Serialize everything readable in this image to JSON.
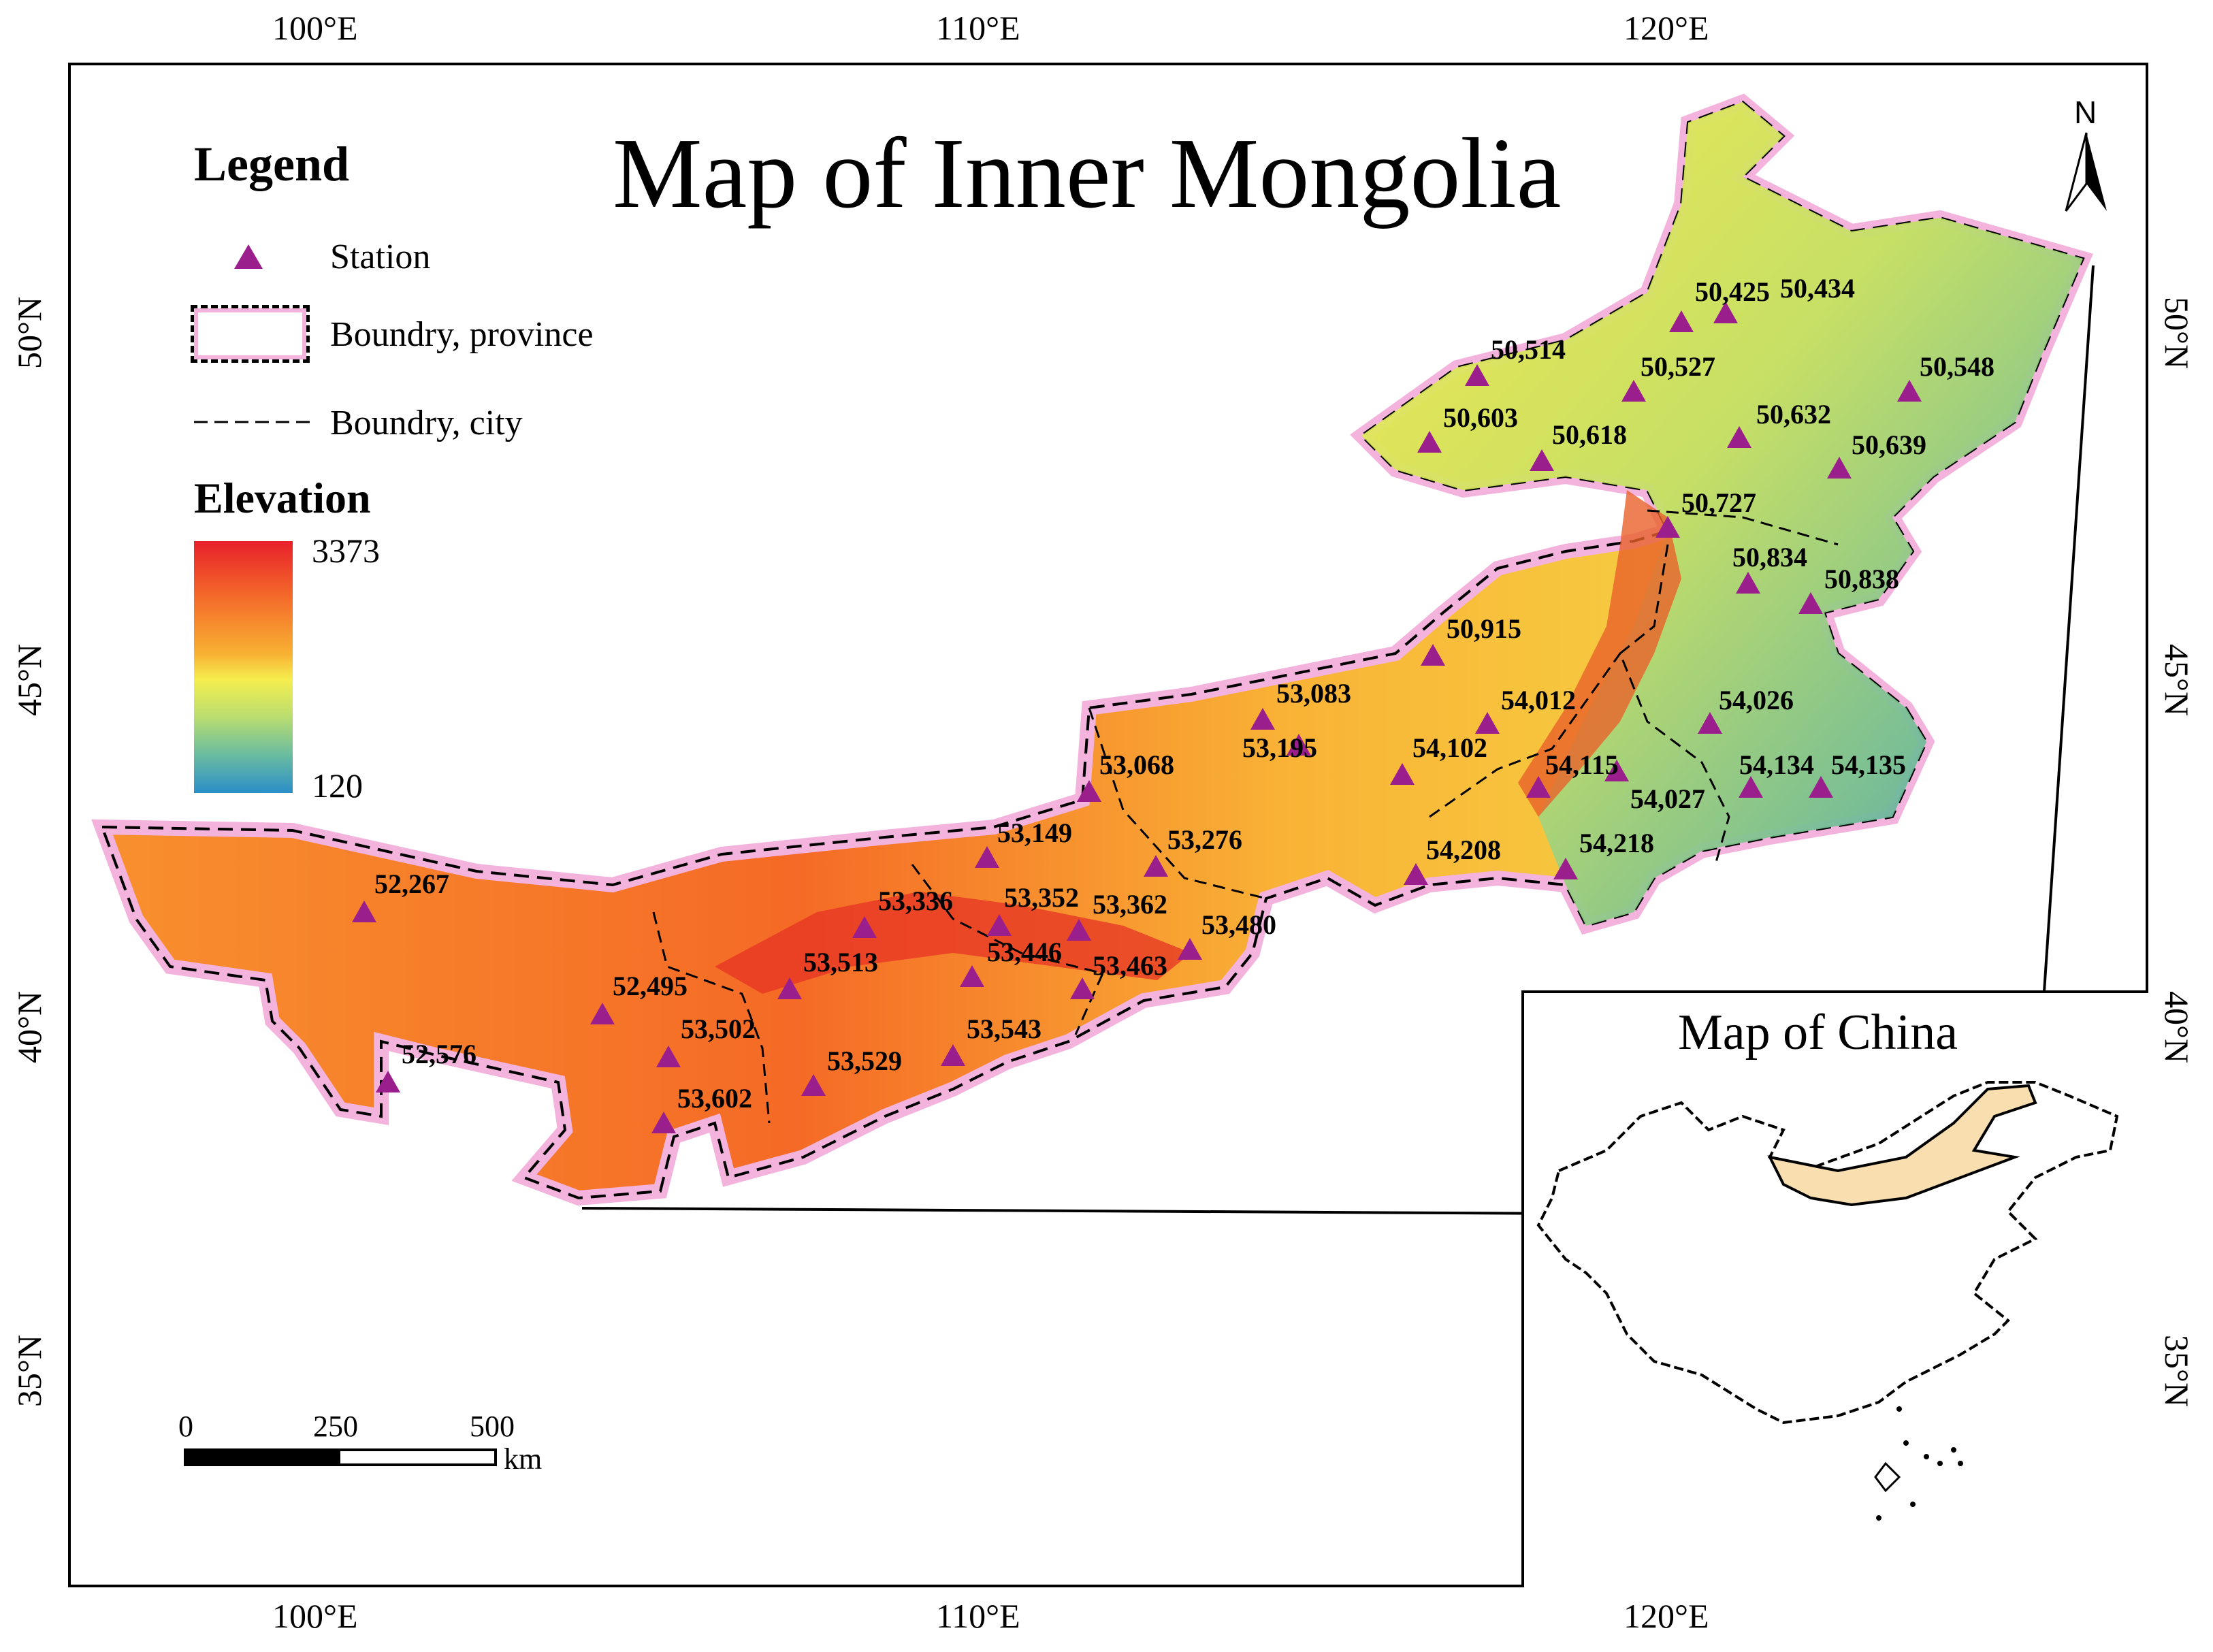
{
  "map": {
    "title": "Map of Inner Mongolia",
    "legend": {
      "title": "Legend",
      "items": [
        {
          "symbol": "purple-triangle",
          "label": "Station"
        },
        {
          "symbol": "pink-dashed-polygon",
          "label": "Boundry, province"
        },
        {
          "symbol": "dashed-line",
          "label": "Boundry, city"
        }
      ]
    },
    "elevation": {
      "title": "Elevation",
      "max": "3373",
      "min": "120",
      "colors": [
        "#e8202a",
        "#f8b233",
        "#f5ee4e",
        "#69bca0",
        "#2b8ec9"
      ]
    },
    "axes": {
      "top": [
        "100°E",
        "110°E",
        "120°E"
      ],
      "bottom": [
        "100°E",
        "110°E",
        "120°E"
      ],
      "left": [
        "50°N",
        "45°N",
        "40°N",
        "35°N"
      ],
      "right": [
        "50°N",
        "45°N",
        "40°N",
        "35°N"
      ]
    },
    "north_arrow": "N",
    "scale_bar": {
      "labels": [
        "0",
        "250",
        "500"
      ],
      "unit": "km"
    },
    "inset": {
      "title": "Map of China",
      "highlight_color": "#f9deb0"
    },
    "stations": [
      "50,425",
      "50,434",
      "50,514",
      "50,527",
      "50,548",
      "50,603",
      "50,618",
      "50,632",
      "50,639",
      "50,727",
      "50,834",
      "50,838",
      "50,915",
      "53,083",
      "53,195",
      "53,068",
      "54,012",
      "54,102",
      "54,026",
      "54,115",
      "54,027",
      "54,134",
      "54,135",
      "53,149",
      "53,276",
      "54,208",
      "54,218",
      "52,267",
      "53,336",
      "53,352",
      "53,362",
      "53,480",
      "53,446",
      "53,463",
      "53,513",
      "52,495",
      "53,502",
      "53,543",
      "53,529",
      "52,576",
      "53,602"
    ]
  }
}
